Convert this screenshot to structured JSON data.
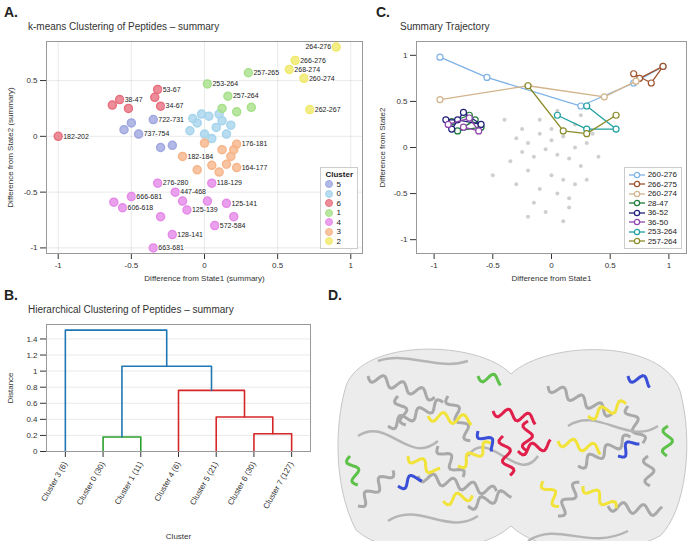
{
  "chart_data": [
    {
      "panel": "A.",
      "type": "scatter",
      "title": "k-means Clustering of Peptides – summary",
      "x_label": "Difference from State1 (summary)",
      "y_label": "Difference from State2 (summary)",
      "xlim": [
        -1.08,
        1.08
      ],
      "ylim": [
        -1.05,
        0.85
      ],
      "xticks": [
        -1,
        -0.5,
        0,
        0.5,
        1
      ],
      "yticks": [
        -1,
        -0.5,
        0,
        0.5
      ],
      "grid": true,
      "legend": "lower right",
      "legend_title": "Cluster",
      "marker": "circle",
      "series": [
        {
          "name": "5",
          "color": "#9fa8e0",
          "x": [
            -0.35,
            -0.45,
            -0.5,
            -0.55,
            -0.22,
            -0.3
          ],
          "y": [
            0.15,
            0.02,
            0.12,
            0.06,
            -0.08,
            -0.1
          ],
          "labels": [
            "722-731",
            "737-754",
            null,
            null,
            null,
            null
          ]
        },
        {
          "name": "0",
          "color": "#a6d4ec",
          "x": [
            -0.1,
            -0.05,
            0,
            0.03,
            0.08,
            0.12,
            0.15,
            -0.02,
            0.05,
            0.18,
            -0.08,
            0.1
          ],
          "y": [
            0.05,
            0.12,
            0.02,
            0.18,
            0.08,
            0.14,
            0.02,
            0.2,
            -0.02,
            0.1,
            0.16,
            0.2
          ],
          "labels": [
            null,
            null,
            null,
            null,
            null,
            null,
            null,
            null,
            null,
            null,
            null,
            null
          ]
        },
        {
          "name": "6",
          "color": "#e8707f",
          "x": [
            -1.0,
            -0.58,
            -0.32,
            -0.3,
            -0.63,
            -0.52,
            -0.34
          ],
          "y": [
            0.0,
            0.33,
            0.42,
            0.27,
            0.28,
            0.25,
            0.35
          ],
          "labels": [
            "182-202",
            "38-47",
            "53-67",
            "34-67",
            null,
            null,
            null
          ]
        },
        {
          "name": "1",
          "color": "#a8e08a",
          "x": [
            0.3,
            0.02,
            0.16,
            0.12,
            0.22,
            0.32
          ],
          "y": [
            0.57,
            0.47,
            0.36,
            0.25,
            0.22,
            0.26
          ],
          "labels": [
            "257-265",
            "253-264",
            "257-264",
            null,
            null,
            null
          ]
        },
        {
          "name": "4",
          "color": "#e58ae8",
          "x": [
            -0.35,
            0.07,
            -0.22,
            -0.56,
            -0.5,
            -0.12,
            0.15,
            -0.2,
            0.05,
            -0.32,
            -0.62,
            -0.3,
            0.02,
            0.2,
            -0.15
          ],
          "y": [
            -1.0,
            -0.8,
            -0.88,
            -0.64,
            -0.54,
            -0.66,
            -0.6,
            -0.5,
            -0.42,
            -0.42,
            -0.59,
            -0.72,
            -0.58,
            -0.72,
            -0.58
          ],
          "labels": [
            "663-681",
            "572-584",
            "128-141",
            "606-618",
            "666-681",
            "125-139",
            "125-141",
            "447-468",
            "118-129",
            "276-280",
            null,
            null,
            null,
            null,
            null
          ]
        },
        {
          "name": "3",
          "color": "#f6b58a",
          "x": [
            0.22,
            0.22,
            -0.15,
            0.0,
            0.12,
            0.18,
            0.05,
            0.15,
            0.1,
            -0.05,
            0.2
          ],
          "y": [
            -0.07,
            -0.28,
            -0.18,
            -0.06,
            -0.12,
            -0.18,
            -0.26,
            -0.25,
            -0.32,
            -0.3,
            -0.12
          ],
          "labels": [
            "176-181",
            "164-177",
            "182-184",
            null,
            null,
            null,
            null,
            null,
            null,
            null,
            null
          ]
        },
        {
          "name": "2",
          "color": "#f0e96a",
          "x": [
            0.9,
            0.62,
            0.58,
            0.68,
            0.72
          ],
          "y": [
            0.8,
            0.68,
            0.6,
            0.52,
            0.24
          ],
          "labels": [
            "264-276",
            "266-276",
            "268-274",
            "260-274",
            "262-267"
          ]
        }
      ]
    },
    {
      "panel": "B.",
      "type": "dendrogram",
      "title": "Hierarchical Clustering of Peptides – summary",
      "x_label": "Cluster",
      "y_label": "Distance",
      "categories": [
        "Cluster 3 (6)",
        "Cluster 0 (30)",
        "Cluster 1 (11)",
        "Cluster 4 (6)",
        "Cluster 5 (21)",
        "Cluster 6 (30)",
        "Cluster 7 (127)"
      ],
      "ylim": [
        0,
        1.58
      ],
      "yticks": [
        0,
        0.2,
        0.4,
        0.6,
        0.8,
        1,
        1.2,
        1.4
      ],
      "grid": true,
      "merges": [
        {
          "left": "Cluster 0 (30)",
          "right": "Cluster 1 (11)",
          "distance": 0.18,
          "color": "#2ca02c"
        },
        {
          "left": "Cluster 6 (30)",
          "right": "Cluster 7 (127)",
          "distance": 0.22,
          "color": "#d62728"
        },
        {
          "left": "Cluster 5 (21)",
          "right": 1,
          "distance": 0.43,
          "color": "#d62728"
        },
        {
          "left": "Cluster 4 (6)",
          "right": 2,
          "distance": 0.76,
          "color": "#d62728"
        },
        {
          "left": 0,
          "right": 3,
          "distance": 1.06,
          "color": "#1f77b4"
        },
        {
          "left": "Cluster 3 (6)",
          "right": 4,
          "distance": 1.51,
          "color": "#1f77b4"
        }
      ]
    },
    {
      "panel": "C.",
      "type": "line",
      "title": "Summary Trajectory",
      "x_label": "Difference from State1",
      "y_label": "Difference from State2",
      "xlim": [
        -1.15,
        1.15
      ],
      "ylim": [
        -1.15,
        1.15
      ],
      "xticks": [
        -1,
        -0.5,
        0,
        0.5,
        1
      ],
      "yticks": [
        -1,
        -0.5,
        0,
        0.5,
        1
      ],
      "grid": false,
      "legend": "lower right",
      "marker": "circle",
      "background": {
        "color": "#cfcfcf",
        "x": [
          -0.3,
          -0.2,
          -0.1,
          0,
          0.1,
          0.2,
          0.3,
          -0.25,
          -0.15,
          -0.05,
          0.05,
          0.15,
          0.25,
          -0.35,
          -0.2,
          0,
          0.1,
          0.2,
          -0.1,
          0.05,
          -0.3,
          -0.15,
          0.15,
          0.3,
          -0.05,
          0.1,
          -0.2,
          0,
          0.2,
          -0.4,
          0.35,
          -0.1,
          0.05,
          0.25,
          -0.25,
          0.4,
          -0.5,
          0.15
        ],
        "y": [
          0.1,
          0.05,
          0.15,
          0.08,
          0.12,
          0,
          0.05,
          -0.05,
          -0.1,
          -0.02,
          -0.08,
          -0.12,
          -0.2,
          -0.15,
          -0.25,
          -0.3,
          -0.35,
          -0.4,
          -0.45,
          -0.5,
          -0.4,
          -0.6,
          -0.55,
          -0.35,
          -0.7,
          -0.8,
          -0.75,
          0.2,
          0.25,
          0.3,
          0.15,
          0.3,
          0.4,
          0.35,
          0.2,
          -0.1,
          -0.3,
          -0.65
        ]
      },
      "series": [
        {
          "name": "260-276",
          "color": "#7fb2e5",
          "x": [
            -0.95,
            -0.55,
            0.25,
            0.7,
            0.95
          ],
          "y": [
            0.98,
            0.76,
            0.45,
            0.7,
            0.88
          ]
        },
        {
          "name": "266-275",
          "color": "#a0522d",
          "x": [
            0.7,
            0.85,
            0.95,
            0.75
          ],
          "y": [
            0.8,
            0.7,
            0.88,
            0.75
          ]
        },
        {
          "name": "260-274",
          "color": "#d2b48c",
          "x": [
            -0.95,
            -0.2,
            0.45,
            0.72
          ],
          "y": [
            0.52,
            0.67,
            0.55,
            0.72
          ]
        },
        {
          "name": "28-47",
          "color": "#1e7b3a",
          "x": [
            -0.85,
            -0.7,
            -0.6,
            -0.8,
            -0.65
          ],
          "y": [
            0.28,
            0.35,
            0.22,
            0.18,
            0.3
          ]
        },
        {
          "name": "36-52",
          "color": "#1f1f7a",
          "x": [
            -0.85,
            -0.75,
            -0.6,
            -0.8,
            -0.9
          ],
          "y": [
            0.2,
            0.38,
            0.25,
            0.3,
            0.3
          ]
        },
        {
          "name": "36-50",
          "color": "#8e44ad",
          "x": [
            -0.88,
            -0.7,
            -0.62,
            -0.75
          ],
          "y": [
            0.25,
            0.32,
            0.18,
            0.22
          ]
        },
        {
          "name": "253-264",
          "color": "#20a0a0",
          "x": [
            0.05,
            0.3,
            0.55,
            0.3
          ],
          "y": [
            0.35,
            0.2,
            0.2,
            0.45
          ]
        },
        {
          "name": "257-264",
          "color": "#8b8b2b",
          "x": [
            -0.2,
            0.1,
            0.3,
            0.55
          ],
          "y": [
            0.67,
            0.18,
            0.15,
            0.35
          ]
        }
      ]
    }
  ],
  "image_panel": {
    "panel": "D."
  }
}
